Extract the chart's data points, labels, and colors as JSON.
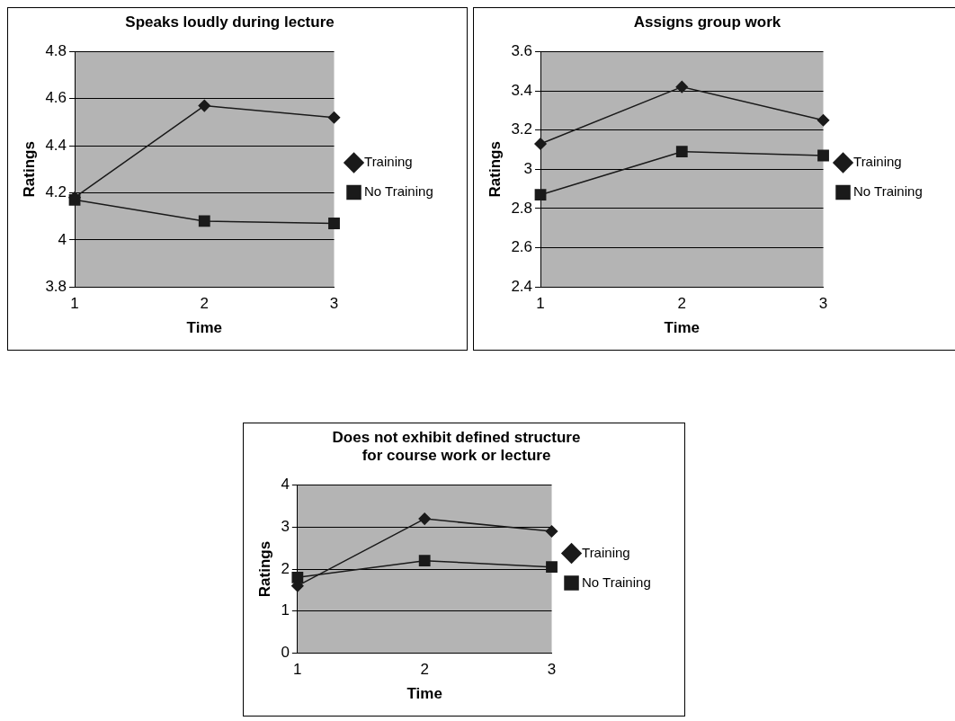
{
  "chart_data": [
    {
      "type": "line",
      "title": "Speaks loudly during lecture",
      "xlabel": "Time",
      "ylabel": "Ratings",
      "categories": [
        "1",
        "2",
        "3"
      ],
      "ylim": [
        3.8,
        4.8
      ],
      "yticks": [
        3.8,
        4,
        4.2,
        4.4,
        4.6,
        4.8
      ],
      "grid": "y",
      "legend": "right",
      "series": [
        {
          "name": "Training",
          "color": "#1a1a1a",
          "marker": "diamond",
          "values": [
            4.18,
            4.57,
            4.52
          ]
        },
        {
          "name": "No Training",
          "color": "#1a1a1a",
          "marker": "square",
          "values": [
            4.17,
            4.08,
            4.07
          ]
        }
      ]
    },
    {
      "type": "line",
      "title": "Assigns group work",
      "xlabel": "Time",
      "ylabel": "Ratings",
      "categories": [
        "1",
        "2",
        "3"
      ],
      "ylim": [
        2.4,
        3.6
      ],
      "yticks": [
        2.4,
        2.6,
        2.8,
        3,
        3.2,
        3.4,
        3.6
      ],
      "grid": "y",
      "legend": "right",
      "series": [
        {
          "name": "Training",
          "color": "#1a1a1a",
          "marker": "diamond",
          "values": [
            3.13,
            3.42,
            3.25
          ]
        },
        {
          "name": "No Training",
          "color": "#1a1a1a",
          "marker": "square",
          "values": [
            2.87,
            3.09,
            3.07
          ]
        }
      ]
    },
    {
      "type": "line",
      "title": "Does not exhibit defined structure\nfor course work or lecture",
      "xlabel": "Time",
      "ylabel": "Ratings",
      "categories": [
        "1",
        "2",
        "3"
      ],
      "ylim": [
        0,
        4
      ],
      "yticks": [
        0,
        1,
        2,
        3,
        4
      ],
      "grid": "y",
      "legend": "right",
      "series": [
        {
          "name": "Training",
          "color": "#1a1a1a",
          "marker": "diamond",
          "values": [
            1.6,
            3.2,
            2.9
          ]
        },
        {
          "name": "No Training",
          "color": "#1a1a1a",
          "marker": "square",
          "values": [
            1.8,
            2.2,
            2.05
          ]
        }
      ]
    }
  ]
}
